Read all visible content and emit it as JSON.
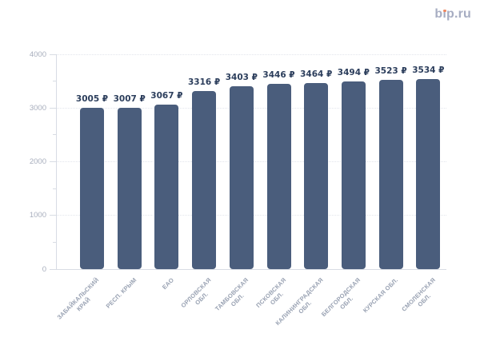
{
  "logo": {
    "text": "bip.ru",
    "text_color": "#a7adc2",
    "dot_color": "#ef8760"
  },
  "colors": {
    "bar": "#4a5d7c",
    "value_label": "#2c3e5c",
    "grid": "#e2e5ec",
    "axis": "#d8dce4",
    "y_tick_label": "#a8aebd",
    "x_label": "#98a1b2",
    "background": "#ffffff"
  },
  "chart_data": {
    "type": "bar",
    "title": "",
    "xlabel": "",
    "ylabel": "",
    "categories": [
      "ЗАБАЙКАЛЬСКИЙ КРАЙ",
      "РЕСП. КРЫМ",
      "ЕАО",
      "ОРЛОВСКАЯ ОБЛ.",
      "ТАМБОВСКАЯ ОБЛ.",
      "ПСКОВСКАЯ ОБЛ.",
      "КАЛИНИНГРАДСКАЯ ОБЛ.",
      "БЕЛГОРОДСКАЯ ОБЛ.",
      "КУРСКАЯ ОБЛ.",
      "СМОЛЕНСКАЯ ОБЛ."
    ],
    "label_lines": [
      [
        "ЗАБАЙКАЛЬСКИЙ",
        "КРАЙ"
      ],
      [
        "РЕСП. КРЫМ"
      ],
      [
        "ЕАО"
      ],
      [
        "ОРЛОВСКАЯ",
        "ОБЛ."
      ],
      [
        "ТАМБОВСКАЯ",
        "ОБЛ."
      ],
      [
        "ПСКОВСКАЯ",
        "ОБЛ."
      ],
      [
        "КАЛИНИНГРАДСКАЯ",
        "ОБЛ."
      ],
      [
        "БЕЛГОРОДСКАЯ",
        "ОБЛ."
      ],
      [
        "КУРСКАЯ ОБЛ."
      ],
      [
        "СМОЛЕНСКАЯ",
        "ОБЛ."
      ]
    ],
    "values": [
      3005,
      3007,
      3067,
      3316,
      3403,
      3446,
      3464,
      3494,
      3523,
      3534
    ],
    "value_labels": [
      "3005 ₽",
      "3007 ₽",
      "3067 ₽",
      "3316 ₽",
      "3403 ₽",
      "3446 ₽",
      "3464 ₽",
      "3494 ₽",
      "3523 ₽",
      "3534 ₽"
    ],
    "value_suffix": " ₽",
    "ylim": [
      0,
      4000
    ],
    "yticks": [
      0,
      1000,
      2000,
      3000,
      4000
    ],
    "ytick_labels": [
      "0",
      "1000",
      "2000",
      "3000",
      "4000"
    ],
    "minor_tick_step": 500,
    "grid": "horizontal-dotted",
    "legend": "none"
  }
}
